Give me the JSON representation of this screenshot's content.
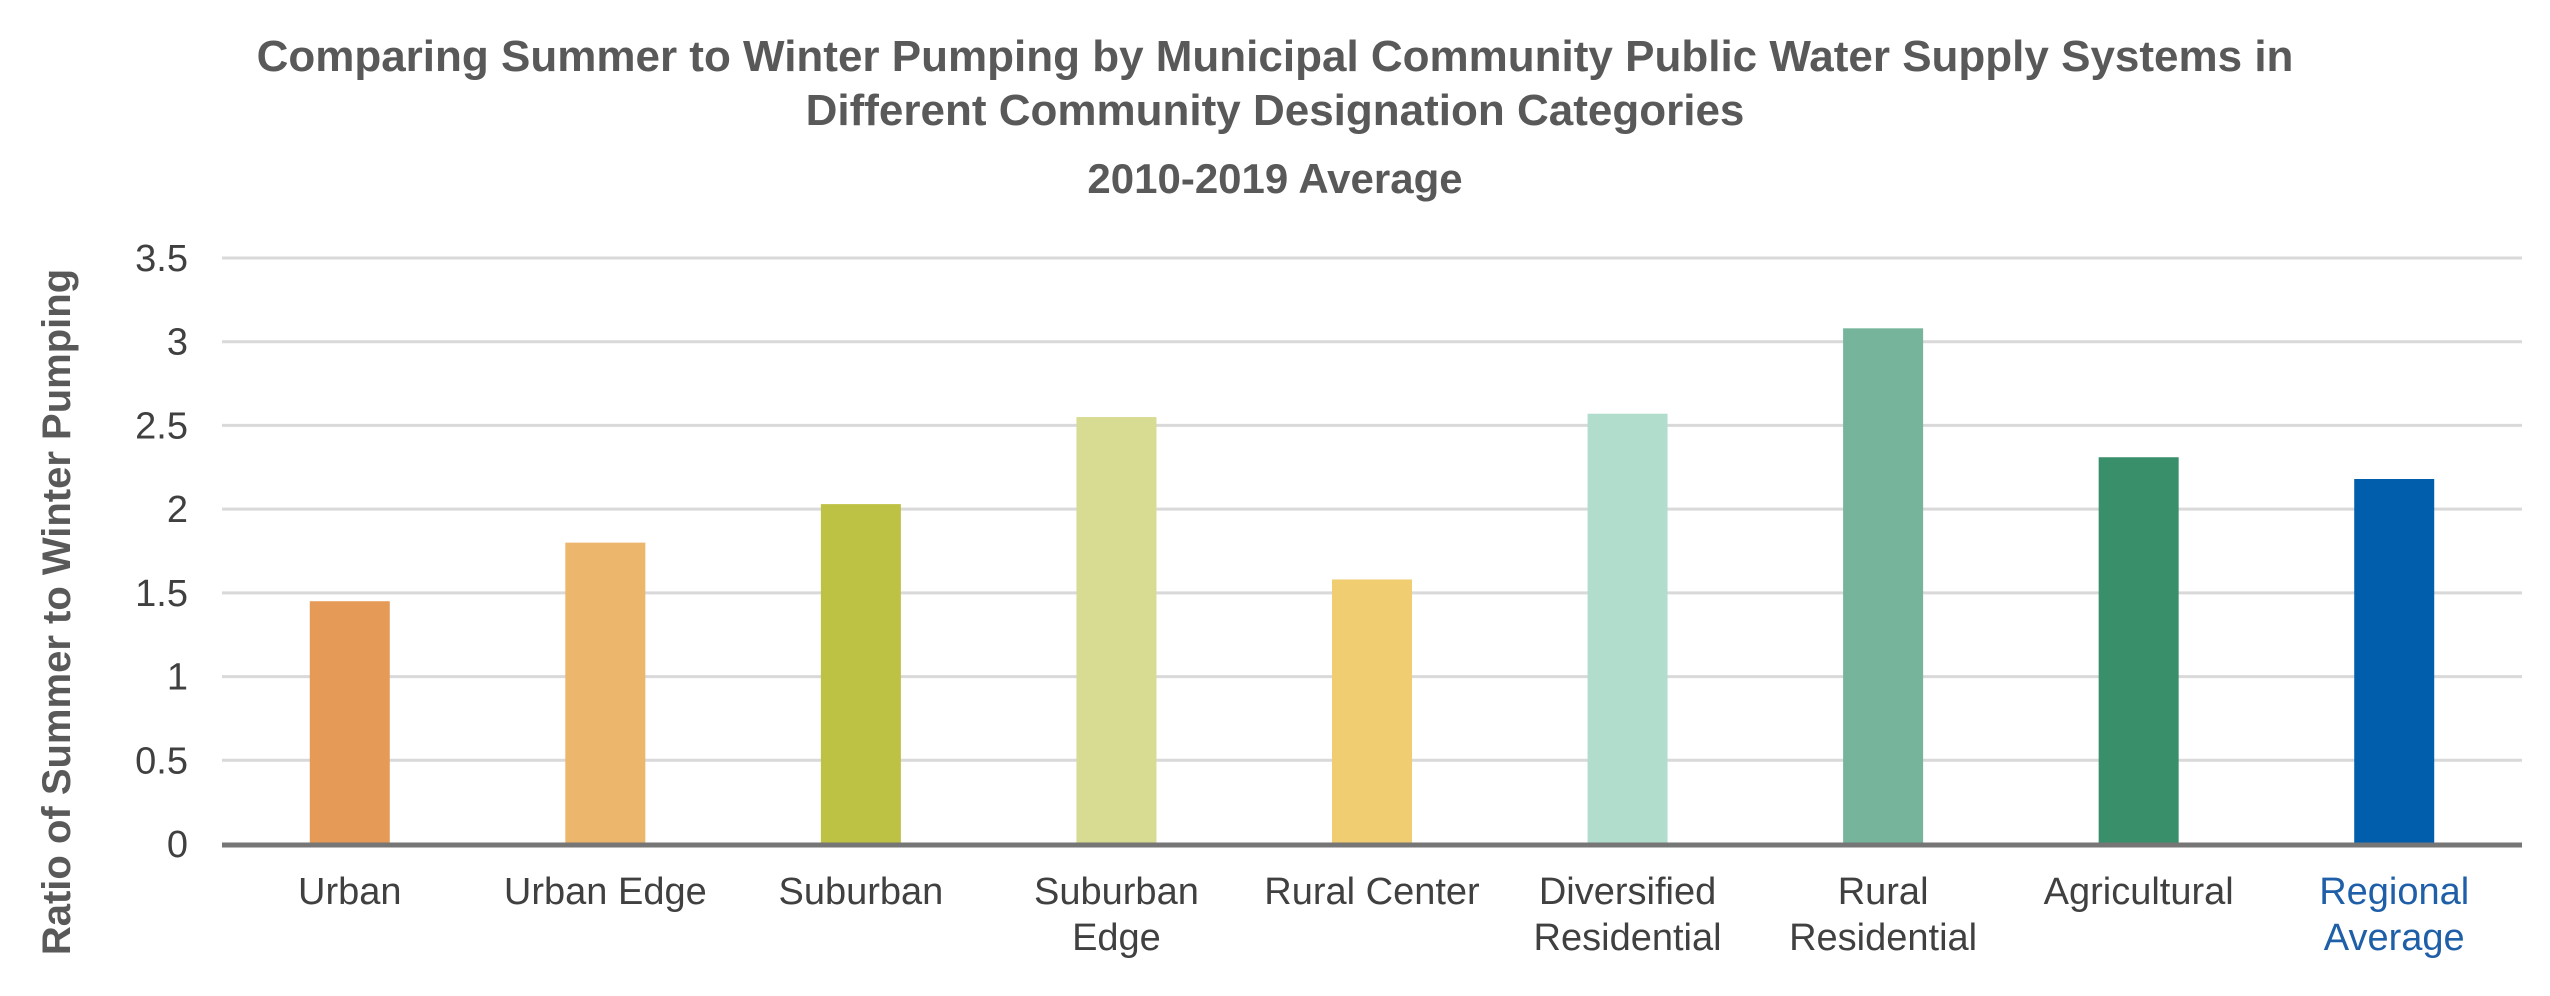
{
  "chart_data": {
    "type": "bar",
    "title_line1": "Comparing Summer to Winter Pumping by Municipal Community Public Water Supply Systems in",
    "title_line2": "Different Community Designation Categories",
    "subtitle": "2010-2019 Average",
    "ylabel": "Ratio of Summer to Winter Pumping",
    "xlabel": "",
    "ylim": [
      0,
      3.5
    ],
    "yticks": [
      "0",
      "0.5",
      "1",
      "1.5",
      "2",
      "2.5",
      "3",
      "3.5"
    ],
    "grid": true,
    "legend": "none",
    "categories": [
      [
        "Urban"
      ],
      [
        "Urban Edge"
      ],
      [
        "Suburban"
      ],
      [
        "Suburban",
        "Edge"
      ],
      [
        "Rural Center"
      ],
      [
        "Diversified",
        "Residential"
      ],
      [
        "Rural",
        "Residential"
      ],
      [
        "Agricultural"
      ],
      [
        "Regional",
        "Average"
      ]
    ],
    "values": [
      1.45,
      1.8,
      2.03,
      2.55,
      1.58,
      2.57,
      3.08,
      2.31,
      2.18
    ],
    "colors": [
      "#e59a58",
      "#ecb66c",
      "#bec244",
      "#d8db92",
      "#efcd70",
      "#b1ddcd",
      "#77b49c",
      "#3a8f6b",
      "#005eac"
    ],
    "highlight_color": "#1f5fa8"
  }
}
